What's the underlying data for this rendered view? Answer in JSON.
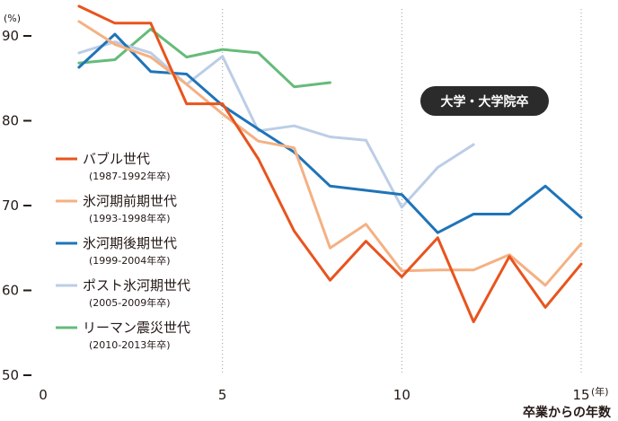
{
  "chart_data": {
    "type": "line",
    "title": "",
    "xlabel": "卒業からの年数",
    "xunit": "(年)",
    "yunit": "(%)",
    "annotation": "大学・大学院卒",
    "xlim": [
      0,
      15
    ],
    "ylim": [
      50,
      90
    ],
    "xticks": [
      0,
      5,
      10,
      15
    ],
    "yticks": [
      50,
      60,
      70,
      80,
      90
    ],
    "grid": "vertical-dotted",
    "legend_position": "left",
    "series": [
      {
        "name": "バブル世代",
        "years": "(1987-1992年卒)",
        "color": "#e8541e",
        "x": [
          1,
          2,
          3,
          4,
          5,
          6,
          7,
          8,
          9,
          10,
          11,
          12,
          13,
          14,
          15
        ],
        "y": [
          93.5,
          91.5,
          91.5,
          82.0,
          82.0,
          75.5,
          67.0,
          61.2,
          65.8,
          61.6,
          66.2,
          56.3,
          64.0,
          58.0,
          63.1
        ]
      },
      {
        "name": "氷河期前期世代",
        "years": "(1993-1998年卒)",
        "color": "#f4b183",
        "x": [
          1,
          2,
          3,
          4,
          5,
          6,
          7,
          8,
          9,
          10,
          11,
          12,
          13,
          14,
          15
        ],
        "y": [
          91.7,
          89.0,
          87.5,
          84.3,
          80.8,
          77.6,
          76.8,
          65.0,
          67.8,
          62.3,
          62.4,
          62.4,
          64.2,
          60.6,
          65.5
        ]
      },
      {
        "name": "氷河期後期世代",
        "years": "(1999-2004年卒)",
        "color": "#1f74b8",
        "x": [
          1,
          2,
          3,
          4,
          5,
          6,
          7,
          8,
          9,
          10,
          11,
          12,
          13,
          14,
          15
        ],
        "y": [
          86.3,
          90.2,
          85.8,
          85.5,
          81.8,
          79.0,
          76.3,
          72.3,
          71.8,
          71.3,
          66.8,
          69.0,
          69.0,
          72.3,
          68.6
        ]
      },
      {
        "name": "ポスト氷河期世代",
        "years": "(2005-2009年卒)",
        "color": "#bccde6",
        "x": [
          1,
          2,
          3,
          4,
          5,
          6,
          7,
          8,
          9,
          10,
          11,
          12
        ],
        "y": [
          88.0,
          89.3,
          88.0,
          84.3,
          87.6,
          78.8,
          79.4,
          78.1,
          77.7,
          69.8,
          74.5,
          77.2
        ]
      },
      {
        "name": "リーマン震災世代",
        "years": "(2010-2013年卒)",
        "color": "#66bb7a",
        "x": [
          1,
          2,
          3,
          4,
          5,
          6,
          7,
          8
        ],
        "y": [
          86.8,
          87.2,
          90.8,
          87.5,
          88.4,
          88.0,
          84.0,
          84.5
        ]
      }
    ]
  }
}
